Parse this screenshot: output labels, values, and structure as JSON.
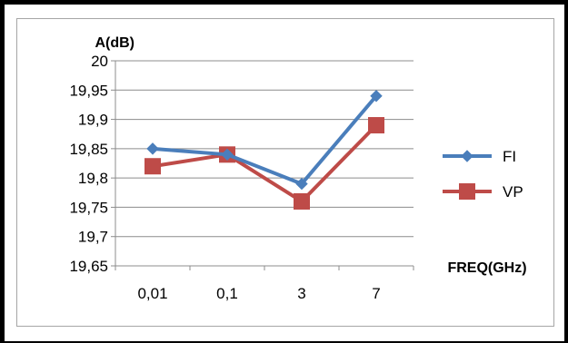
{
  "chart_data": {
    "type": "line",
    "title": "",
    "ylabel": "A(dB)",
    "xlabel": "FREQ(GHz)",
    "categories": [
      "0,01",
      "0,1",
      "3",
      "7"
    ],
    "ylim": [
      19.65,
      20
    ],
    "yticks": [
      "20",
      "19,95",
      "19,9",
      "19,85",
      "19,8",
      "19,75",
      "19,7",
      "19,65"
    ],
    "ytick_values": [
      20,
      19.95,
      19.9,
      19.85,
      19.8,
      19.75,
      19.7,
      19.65
    ],
    "grid": true,
    "legend_position": "right",
    "series": [
      {
        "name": "FI",
        "values": [
          19.85,
          19.84,
          19.79,
          19.94
        ],
        "color": "#4a7ebb",
        "marker": "diamond"
      },
      {
        "name": "VP",
        "values": [
          19.82,
          19.84,
          19.76,
          19.89
        ],
        "color": "#be4b48",
        "marker": "square"
      }
    ]
  }
}
